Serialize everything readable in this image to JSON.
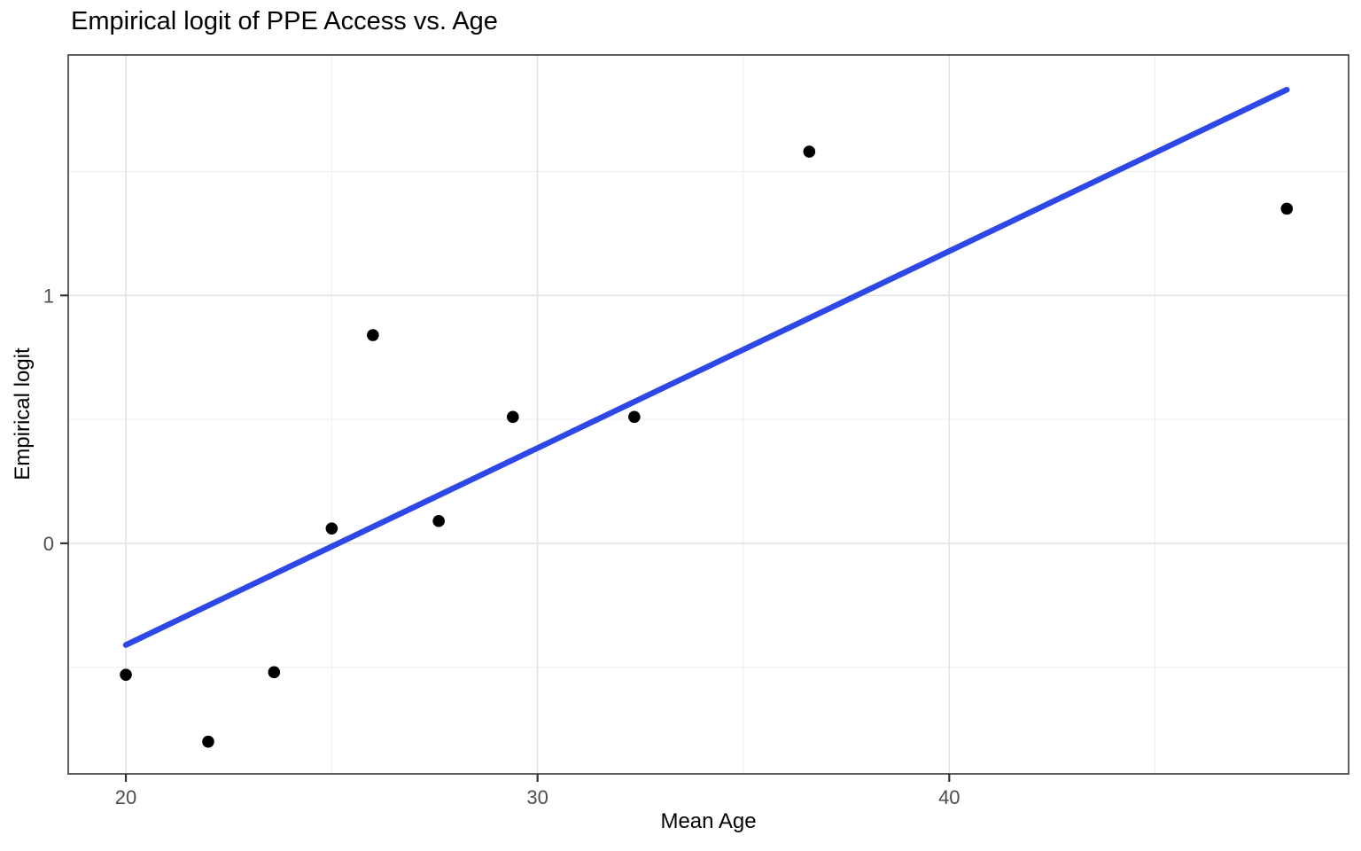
{
  "figure": {
    "title": "Empirical logit of PPE Access vs. Age",
    "x_axis_label": "Mean Age",
    "y_axis_label": "Empirical logit"
  },
  "chart_data": {
    "type": "scatter",
    "title": "Empirical logit of PPE Access vs. Age",
    "xlabel": "Mean Age",
    "ylabel": "Empirical logit",
    "xlim": [
      18.6,
      49.7
    ],
    "ylim": [
      -0.93,
      1.97
    ],
    "x_major_ticks": [
      20,
      30,
      40
    ],
    "y_major_ticks": [
      0,
      1
    ],
    "x_minor_gridlines": [
      25,
      35,
      45
    ],
    "y_minor_gridlines": [
      -0.5,
      0.5,
      1.5
    ],
    "grid": true,
    "legend": "none",
    "points": [
      {
        "x": 20.0,
        "y": -0.53
      },
      {
        "x": 22.0,
        "y": -0.8
      },
      {
        "x": 23.6,
        "y": -0.52
      },
      {
        "x": 25.0,
        "y": 0.06
      },
      {
        "x": 26.0,
        "y": 0.84
      },
      {
        "x": 27.6,
        "y": 0.09
      },
      {
        "x": 29.4,
        "y": 0.51
      },
      {
        "x": 32.35,
        "y": 0.51
      },
      {
        "x": 36.6,
        "y": 1.58
      },
      {
        "x": 48.2,
        "y": 1.35
      }
    ],
    "trend_line": {
      "type": "linear",
      "x_start": 20.0,
      "y_start": -0.41,
      "x_end": 48.2,
      "y_end": 1.83
    },
    "colors": {
      "point": "#000000",
      "trend_line": "#2E48E8",
      "grid_major": "#E4E4E4",
      "grid_minor": "#EDEDED",
      "panel_border": "#4D4D4D",
      "tick_mark": "#333333",
      "tick_label": "#4D4D4D",
      "axis_title": "#000000",
      "title": "#000000",
      "background": "#FFFFFF"
    }
  }
}
